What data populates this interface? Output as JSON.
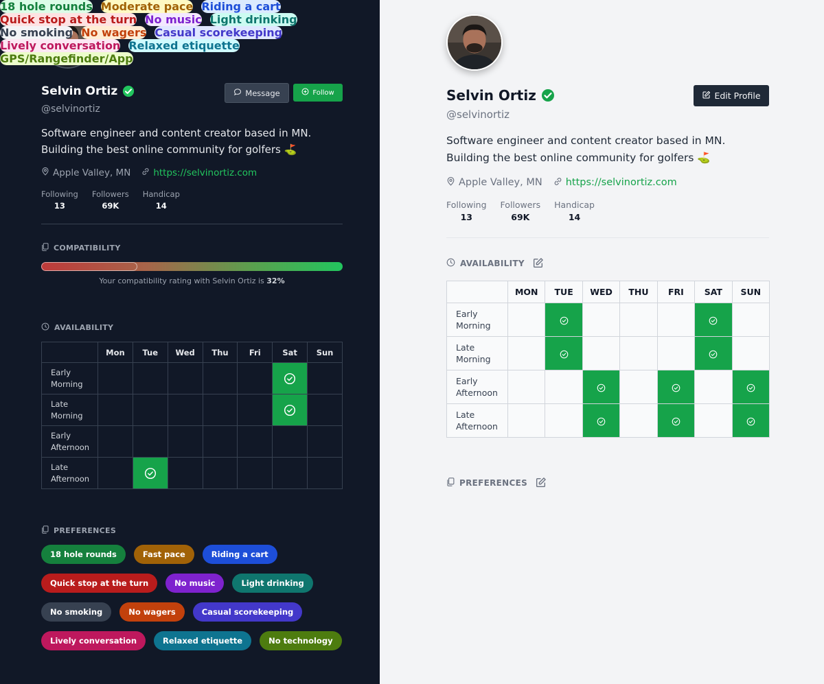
{
  "profile": {
    "name": "Selvin Ortiz",
    "handle": "@selvinortiz",
    "bio_line1": "Software engineer and content creator based in MN.",
    "bio_line2": "Building the best online community for golfers",
    "bio_emoji": "⛳",
    "location": "Apple Valley, MN",
    "website": "https://selvinortiz.com",
    "stats": [
      {
        "label": "Following",
        "value": "13"
      },
      {
        "label": "Followers",
        "value": "69K"
      },
      {
        "label": "Handicap",
        "value": "14"
      }
    ]
  },
  "dark": {
    "buttons": {
      "message": "Message",
      "follow": "Follow"
    },
    "compatibility": {
      "title": "COMPATIBILITY",
      "text_prefix": "Your compatibility rating with Selvin Ortiz is ",
      "value_label": "32%",
      "value": 0.32
    },
    "availability": {
      "title": "AVAILABILITY",
      "days": [
        "Mon",
        "Tue",
        "Wed",
        "Thu",
        "Fri",
        "Sat",
        "Sun"
      ],
      "rows": [
        {
          "line1": "Early",
          "line2": "Morning",
          "slots": [
            0,
            0,
            0,
            0,
            0,
            1,
            0
          ]
        },
        {
          "line1": "Late",
          "line2": "Morning",
          "slots": [
            0,
            0,
            0,
            0,
            0,
            1,
            0
          ]
        },
        {
          "line1": "Early",
          "line2": "Afternoon",
          "slots": [
            0,
            0,
            0,
            0,
            0,
            0,
            0
          ]
        },
        {
          "line1": "Late",
          "line2": "Afternoon",
          "slots": [
            0,
            1,
            0,
            0,
            0,
            0,
            0
          ]
        }
      ]
    },
    "preferences": {
      "title": "PREFERENCES",
      "rows": [
        [
          {
            "label": "18 hole rounds",
            "bg": "#15803d"
          },
          {
            "label": "Fast pace",
            "bg": "#a16207"
          },
          {
            "label": "Riding a cart",
            "bg": "#1d4ed8"
          }
        ],
        [
          {
            "label": "Quick stop at the turn",
            "bg": "#b91c1c"
          },
          {
            "label": "No music",
            "bg": "#7e22ce"
          },
          {
            "label": "Light drinking",
            "bg": "#0f766e"
          }
        ],
        [
          {
            "label": "No smoking",
            "bg": "#374151"
          },
          {
            "label": "No wagers",
            "bg": "#c2410c"
          },
          {
            "label": "Casual scorekeeping",
            "bg": "#4338ca"
          }
        ],
        [
          {
            "label": "Lively conversation",
            "bg": "#be185d"
          },
          {
            "label": "Relaxed etiquette",
            "bg": "#0e7490"
          },
          {
            "label": "No technology",
            "bg": "#4d7c0f"
          }
        ]
      ]
    }
  },
  "light": {
    "buttons": {
      "edit": "Edit Profile"
    },
    "availability": {
      "title": "AVAILABILITY",
      "days": [
        "MON",
        "TUE",
        "WED",
        "THU",
        "FRI",
        "SAT",
        "SUN"
      ],
      "rows": [
        {
          "line1": "Early",
          "line2": "Morning",
          "slots": [
            0,
            1,
            0,
            0,
            0,
            1,
            0
          ]
        },
        {
          "line1": "Late",
          "line2": "Morning",
          "slots": [
            0,
            1,
            0,
            0,
            0,
            1,
            0
          ]
        },
        {
          "line1": "Early",
          "line2": "Afternoon",
          "slots": [
            0,
            0,
            1,
            0,
            1,
            0,
            1
          ]
        },
        {
          "line1": "Late",
          "line2": "Afternoon",
          "slots": [
            0,
            0,
            1,
            0,
            1,
            0,
            1
          ]
        }
      ]
    },
    "preferences": {
      "title": "PREFERENCES",
      "rows": [
        [
          {
            "label": "18 hole rounds",
            "bg": "#dcfce7",
            "fg": "#15803d"
          },
          {
            "label": "Moderate pace",
            "bg": "#fef9c3",
            "fg": "#a16207"
          },
          {
            "label": "Riding a cart",
            "bg": "#dbeafe",
            "fg": "#1d4ed8"
          }
        ],
        [
          {
            "label": "Quick stop at the turn",
            "bg": "#fee2e2",
            "fg": "#b91c1c"
          },
          {
            "label": "No music",
            "bg": "#f3e8ff",
            "fg": "#7e22ce"
          },
          {
            "label": "Light drinking",
            "bg": "#ccfbf1",
            "fg": "#0f766e"
          }
        ],
        [
          {
            "label": "No smoking",
            "bg": "#f3f4f6",
            "fg": "#374151"
          },
          {
            "label": "No wagers",
            "bg": "#ffedd5",
            "fg": "#c2410c"
          },
          {
            "label": "Casual scorekeeping",
            "bg": "#e0e7ff",
            "fg": "#4338ca"
          }
        ],
        [
          {
            "label": "Lively conversation",
            "bg": "#fce7f3",
            "fg": "#be185d"
          },
          {
            "label": "Relaxed etiquette",
            "bg": "#cffafe",
            "fg": "#0e7490"
          }
        ],
        [
          {
            "label": "GPS/Rangefinder/App",
            "bg": "#ecfccb",
            "fg": "#4d7c0f"
          }
        ]
      ]
    }
  },
  "colors": {
    "accent_green": "#16a34a",
    "dark_bg": "#111827",
    "light_bg": "#f3f4f6"
  },
  "icons": [
    "avatar-photo",
    "verified-check-icon",
    "location-pin-icon",
    "link-icon",
    "message-bubble-icon",
    "plus-circle-icon",
    "edit-icon",
    "clock-icon",
    "copy-icon",
    "check-circle-icon"
  ]
}
